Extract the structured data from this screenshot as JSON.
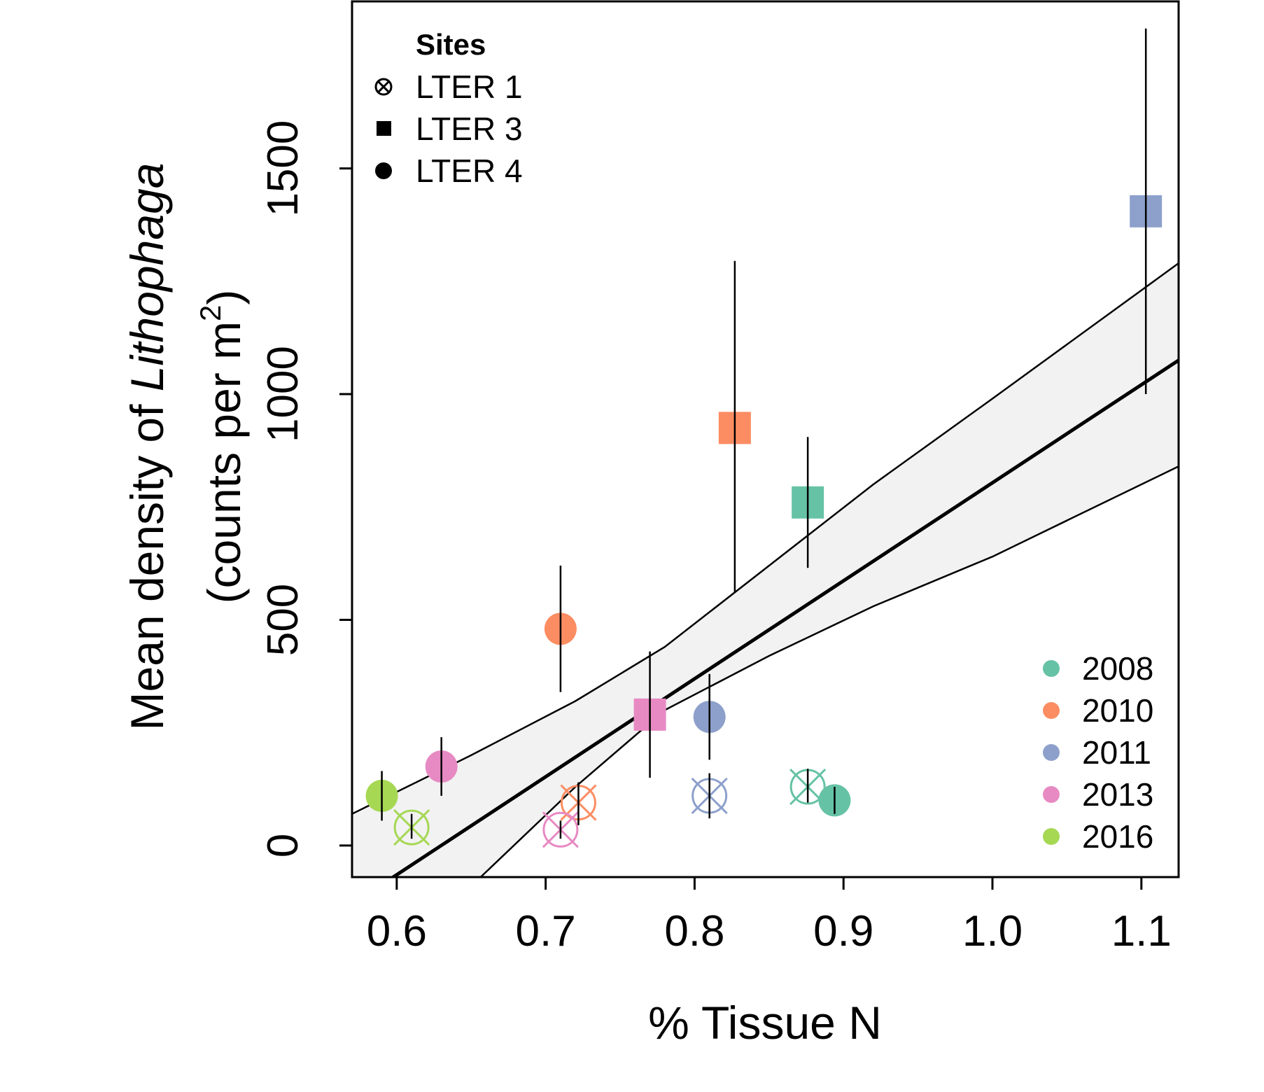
{
  "chart_data": {
    "type": "scatter",
    "xlabel": "% Tissue N",
    "ylabel": {
      "line1_prefix": "Mean density of ",
      "line1_italic": "Lithophaga",
      "line2_main": "(counts per m",
      "line2_sup": "2",
      "line2_close": ")"
    },
    "xlim": [
      0.57,
      1.125
    ],
    "ylim": [
      -70,
      1870
    ],
    "x_ticks": [
      "0.6",
      "0.7",
      "0.8",
      "0.9",
      "1.0",
      "1.1"
    ],
    "y_ticks": [
      "0",
      "500",
      "1000",
      "1500"
    ],
    "grid": false,
    "legend_sites": {
      "title": "Sites",
      "placement": "top-left",
      "items": [
        {
          "label": "LTER 1",
          "symbol": "circle-x"
        },
        {
          "label": "LTER 3",
          "symbol": "square"
        },
        {
          "label": "LTER 4",
          "symbol": "circle"
        }
      ]
    },
    "legend_years": {
      "placement": "bottom-right",
      "items": [
        {
          "label": "2008",
          "color": "#66c2a5"
        },
        {
          "label": "2010",
          "color": "#fc8d62"
        },
        {
          "label": "2011",
          "color": "#8da0cb"
        },
        {
          "label": "2013",
          "color": "#e78ac3"
        },
        {
          "label": "2016",
          "color": "#a6d854"
        }
      ]
    },
    "points": [
      {
        "site": "LTER 1",
        "year": "2008",
        "x": 0.876,
        "y": 130,
        "err_lo": 95,
        "err_hi": 170
      },
      {
        "site": "LTER 1",
        "year": "2010",
        "x": 0.722,
        "y": 95,
        "err_lo": 45,
        "err_hi": 140
      },
      {
        "site": "LTER 1",
        "year": "2011",
        "x": 0.81,
        "y": 110,
        "err_lo": 60,
        "err_hi": 160
      },
      {
        "site": "LTER 1",
        "year": "2013",
        "x": 0.71,
        "y": 35,
        "err_lo": 15,
        "err_hi": 55
      },
      {
        "site": "LTER 1",
        "year": "2016",
        "x": 0.61,
        "y": 40,
        "err_lo": 15,
        "err_hi": 70
      },
      {
        "site": "LTER 3",
        "year": "2008",
        "x": 0.876,
        "y": 760,
        "err_lo": 615,
        "err_hi": 905
      },
      {
        "site": "LTER 3",
        "year": "2010",
        "x": 0.827,
        "y": 925,
        "err_lo": 560,
        "err_hi": 1295
      },
      {
        "site": "LTER 3",
        "year": "2011",
        "x": 1.103,
        "y": 1405,
        "err_lo": 1000,
        "err_hi": 1810
      },
      {
        "site": "LTER 3",
        "year": "2013",
        "x": 0.77,
        "y": 290,
        "err_lo": 150,
        "err_hi": 430
      },
      {
        "site": "LTER 4",
        "year": "2008",
        "x": 0.894,
        "y": 100,
        "err_lo": 70,
        "err_hi": 130
      },
      {
        "site": "LTER 4",
        "year": "2010",
        "x": 0.71,
        "y": 480,
        "err_lo": 340,
        "err_hi": 620
      },
      {
        "site": "LTER 4",
        "year": "2011",
        "x": 0.81,
        "y": 285,
        "err_lo": 190,
        "err_hi": 380
      },
      {
        "site": "LTER 4",
        "year": "2013",
        "x": 0.63,
        "y": 175,
        "err_lo": 110,
        "err_hi": 240
      },
      {
        "site": "LTER 4",
        "year": "2016",
        "x": 0.59,
        "y": 110,
        "err_lo": 55,
        "err_hi": 165
      }
    ],
    "fit": {
      "x_start": 0.57,
      "x_end": 1.125,
      "y_start": -130,
      "y_end": 1075
    },
    "ci_upper": [
      {
        "x": 0.57,
        "y": 70
      },
      {
        "x": 0.65,
        "y": 200
      },
      {
        "x": 0.72,
        "y": 320
      },
      {
        "x": 0.78,
        "y": 440
      },
      {
        "x": 0.85,
        "y": 620
      },
      {
        "x": 0.92,
        "y": 800
      },
      {
        "x": 1.0,
        "y": 990
      },
      {
        "x": 1.125,
        "y": 1290
      }
    ],
    "ci_lower": [
      {
        "x": 0.57,
        "y": -330
      },
      {
        "x": 0.65,
        "y": -90
      },
      {
        "x": 0.72,
        "y": 130
      },
      {
        "x": 0.78,
        "y": 300
      },
      {
        "x": 0.85,
        "y": 420
      },
      {
        "x": 0.92,
        "y": 530
      },
      {
        "x": 1.0,
        "y": 640
      },
      {
        "x": 1.125,
        "y": 840
      }
    ]
  }
}
